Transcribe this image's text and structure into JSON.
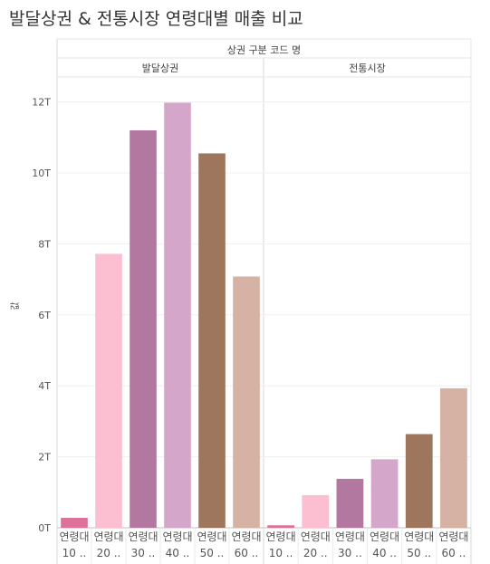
{
  "title": "발달상권 & 전통시장 연령대별 매출 비교",
  "chart_data": {
    "type": "bar",
    "title": "발달상권 & 전통시장 연령대별 매출 비교",
    "column_header": "상권 구분 코드 명",
    "ylabel": "값",
    "ylim": [
      0,
      12.5
    ],
    "yticks": [
      "0T",
      "2T",
      "4T",
      "6T",
      "8T",
      "10T",
      "12T"
    ],
    "yunit": "T",
    "gridlines": true,
    "categories": [
      "연령대 10 ..",
      "연령대 20 ..",
      "연령대 30 ..",
      "연령대 40 ..",
      "연령대 50 ..",
      "연령대 60 .."
    ],
    "category_lines": [
      [
        "연령대",
        "10 .."
      ],
      [
        "연령대",
        "20 .."
      ],
      [
        "연령대",
        "30 .."
      ],
      [
        "연령대",
        "40 .."
      ],
      [
        "연령대",
        "50 .."
      ],
      [
        "연령대",
        "60 .."
      ]
    ],
    "colors": [
      "#dd7199",
      "#fbbfd1",
      "#b2789f",
      "#d4a6c9",
      "#9e765d",
      "#d5b2a4"
    ],
    "panels": [
      {
        "name": "발달상권",
        "values": [
          0.28,
          7.72,
          11.2,
          11.98,
          10.55,
          7.08
        ]
      },
      {
        "name": "전통시장",
        "values": [
          0.07,
          0.92,
          1.38,
          1.93,
          2.64,
          3.93
        ]
      }
    ]
  }
}
